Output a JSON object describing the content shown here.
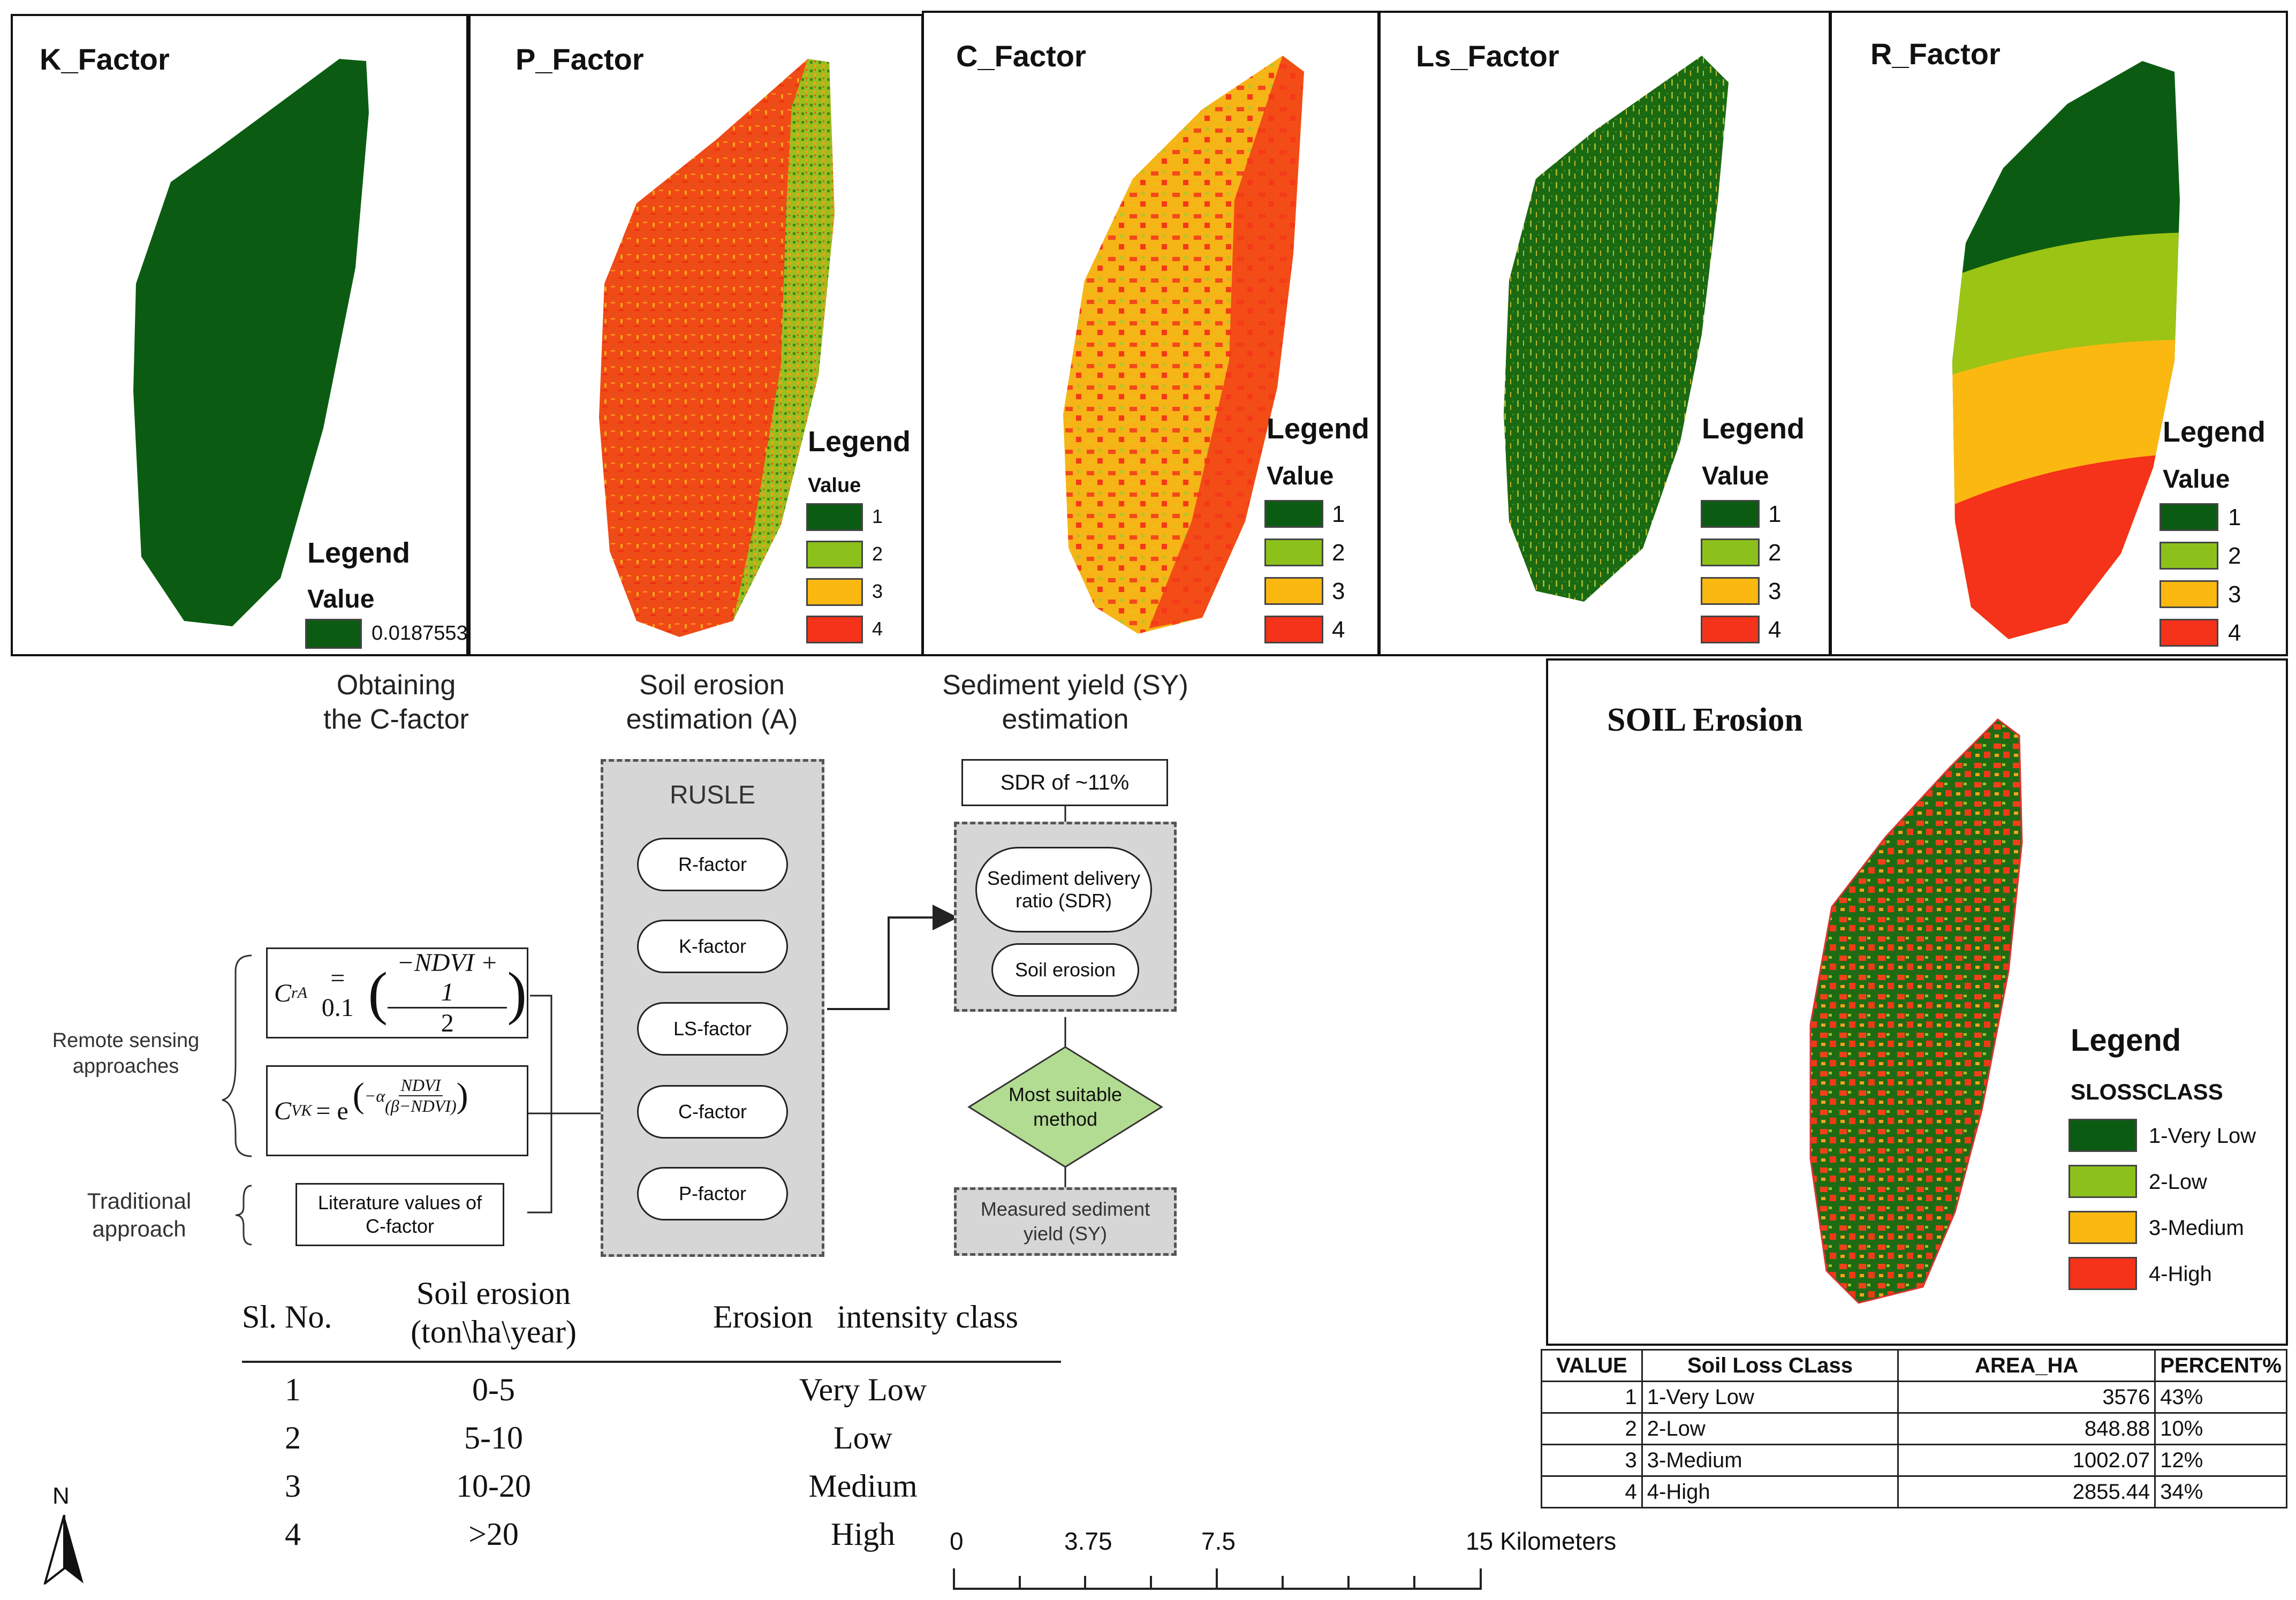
{
  "factor_panels": [
    {
      "title": "K_Factor",
      "legend_title": "Legend",
      "legend_sub": "Value",
      "legend_items": [
        "0.0187553"
      ]
    },
    {
      "title": "P_Factor",
      "legend_title": "Legend",
      "legend_sub": "Value",
      "legend_items": [
        "1",
        "2",
        "3",
        "4"
      ]
    },
    {
      "title": "C_Factor",
      "legend_title": "Legend",
      "legend_sub": "Value",
      "legend_items": [
        "1",
        "2",
        "3",
        "4"
      ]
    },
    {
      "title": "Ls_Factor",
      "legend_title": "Legend",
      "legend_sub": "Value",
      "legend_items": [
        "1",
        "2",
        "3",
        "4"
      ]
    },
    {
      "title": "R_Factor",
      "legend_title": "Legend",
      "legend_sub": "Value",
      "legend_items": [
        "1",
        "2",
        "3",
        "4"
      ]
    }
  ],
  "colors": {
    "class1": "#0b5c12",
    "class2": "#8cc11c",
    "class3": "#fbb811",
    "class4": "#f5321a"
  },
  "flowchart": {
    "col1_title": [
      "Obtaining",
      "the C-factor"
    ],
    "col2_title": [
      "Soil erosion",
      "estimation (A)"
    ],
    "col3_title": [
      "Sediment yield (SY)",
      "estimation"
    ],
    "rusle_label": "RUSLE",
    "factors": [
      "R-factor",
      "K-factor",
      "LS-factor",
      "C-factor",
      "P-factor"
    ],
    "sdr_box": "SDR of ~11%",
    "sdr_pill": [
      "Sediment delivery",
      "ratio (SDR)"
    ],
    "soil_erosion_pill": "Soil erosion",
    "diamond": [
      "Most suitable",
      "method"
    ],
    "measured_box": [
      "Measured sediment",
      "yield (SY)"
    ],
    "remote_label": [
      "Remote sensing",
      "approaches"
    ],
    "traditional_label": [
      "Traditional",
      "approach"
    ],
    "literature_box": [
      "Literature values of",
      "C-factor"
    ],
    "formula1": {
      "lhs": "C",
      "lhs_sub": "rA",
      "eq": "= 0.1",
      "num": "−NDVI + 1",
      "den": "2"
    },
    "formula2": {
      "lhs": "C",
      "lhs_sub": "VK",
      "eq": "= e",
      "exp_pre": "−α",
      "num": "NDVI",
      "den": "(β−NDVI)"
    }
  },
  "class_table": {
    "headers": {
      "sl": "Sl. No.",
      "erosion_line1": "Soil erosion",
      "erosion_line2": "(ton\\ha\\year)",
      "intensity": "Erosion   intensity class"
    },
    "rows": [
      {
        "sl": "1",
        "range": "0-5",
        "cls": "Very Low"
      },
      {
        "sl": "2",
        "range": "5-10",
        "cls": "Low"
      },
      {
        "sl": "3",
        "range": "10-20",
        "cls": "Medium"
      },
      {
        "sl": "4",
        "range": ">20",
        "cls": "High"
      }
    ]
  },
  "north_label": "N",
  "scale_bar": {
    "labels": [
      "0",
      "3.75",
      "7.5",
      "15 Kilometers"
    ]
  },
  "soil_panel": {
    "title": "SOIL Erosion",
    "legend_title": "Legend",
    "legend_sub": "SLOSSCLASS",
    "legend_items": [
      "1-Very Low",
      "2-Low",
      "3-Medium",
      "4-High"
    ]
  },
  "loss_table": {
    "headers": [
      "VALUE",
      "Soil Loss CLass",
      "AREA_HA",
      "PERCENT%"
    ],
    "rows": [
      {
        "value": "1",
        "cls": "1-Very Low",
        "area": "3576",
        "pct": "43%"
      },
      {
        "value": "2",
        "cls": "2-Low",
        "area": "848.88",
        "pct": "10%"
      },
      {
        "value": "3",
        "cls": "3-Medium",
        "area": "1002.07",
        "pct": "12%"
      },
      {
        "value": "4",
        "cls": "4-High",
        "area": "2855.44",
        "pct": "34%"
      }
    ]
  }
}
